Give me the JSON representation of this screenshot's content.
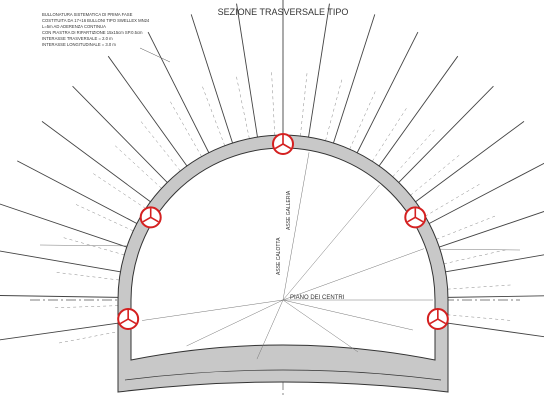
{
  "title": "SEZIONE TRASVERSALE TIPO",
  "note": [
    "BULLONATURA SISTEMATICA DI PRIMA FASE",
    "COSTITUITA DA 17+16 BULLONI TIPO SWELLEX MN24",
    "L=5m AD ADERENZA CONTINUA",
    "CON PIASTRA DI RIPARTIZIONE 15x15cm SP.0.5cm",
    "INTERASSE TRASVERSALE = 2.0 m",
    "INTERASSE LONGITUDINALE = 3.0 m"
  ],
  "labels": {
    "centers_plane": "PIANO DEI CENTRI",
    "tunnel_axis": "ASSE GALLERIA",
    "crown_axis": "ASSE CALOTTA"
  }
}
